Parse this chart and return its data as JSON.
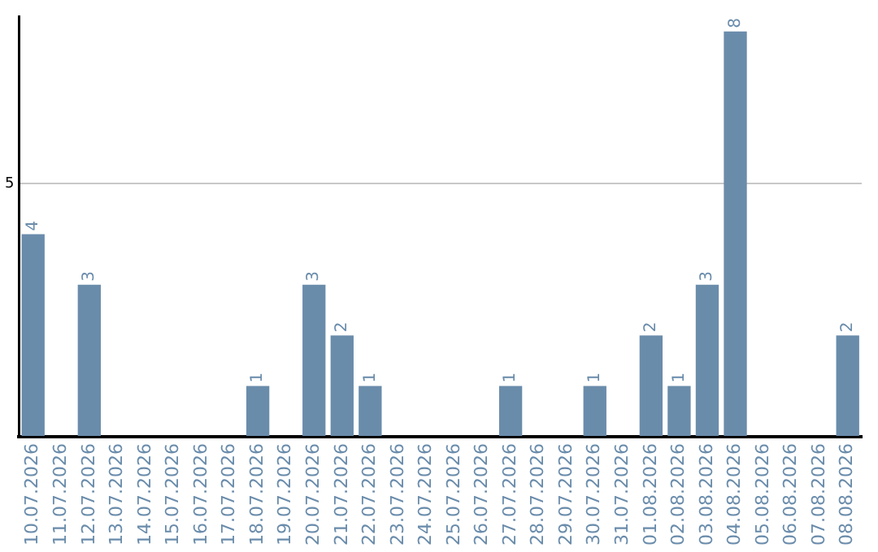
{
  "chart_data": {
    "type": "bar",
    "categories": [
      "10.07.2026",
      "11.07.2026",
      "12.07.2026",
      "13.07.2026",
      "14.07.2026",
      "15.07.2026",
      "16.07.2026",
      "17.07.2026",
      "18.07.2026",
      "19.07.2026",
      "20.07.2026",
      "21.07.2026",
      "22.07.2026",
      "23.07.2026",
      "24.07.2026",
      "25.07.2026",
      "26.07.2026",
      "27.07.2026",
      "28.07.2026",
      "29.07.2026",
      "30.07.2026",
      "31.07.2026",
      "01.08.2026",
      "02.08.2026",
      "03.08.2026",
      "04.08.2026",
      "05.08.2026",
      "06.08.2026",
      "07.08.2026",
      "08.08.2026"
    ],
    "values": [
      4,
      0,
      3,
      0,
      0,
      0,
      0,
      0,
      1,
      0,
      3,
      2,
      1,
      0,
      0,
      0,
      0,
      1,
      0,
      0,
      1,
      0,
      2,
      1,
      3,
      8,
      0,
      0,
      0,
      2
    ],
    "value_labels": [
      "4",
      null,
      "3",
      null,
      null,
      null,
      null,
      null,
      "1",
      null,
      "3",
      "2",
      "1",
      null,
      null,
      null,
      null,
      "1",
      null,
      null,
      "1",
      null,
      "2",
      "1",
      "3",
      "8",
      null,
      null,
      null,
      "2"
    ],
    "color": "#6a8cab",
    "ylim": [
      0,
      8.3
    ],
    "yticks": [
      {
        "value": 0,
        "label": null
      },
      5
    ],
    "grid": "y"
  }
}
